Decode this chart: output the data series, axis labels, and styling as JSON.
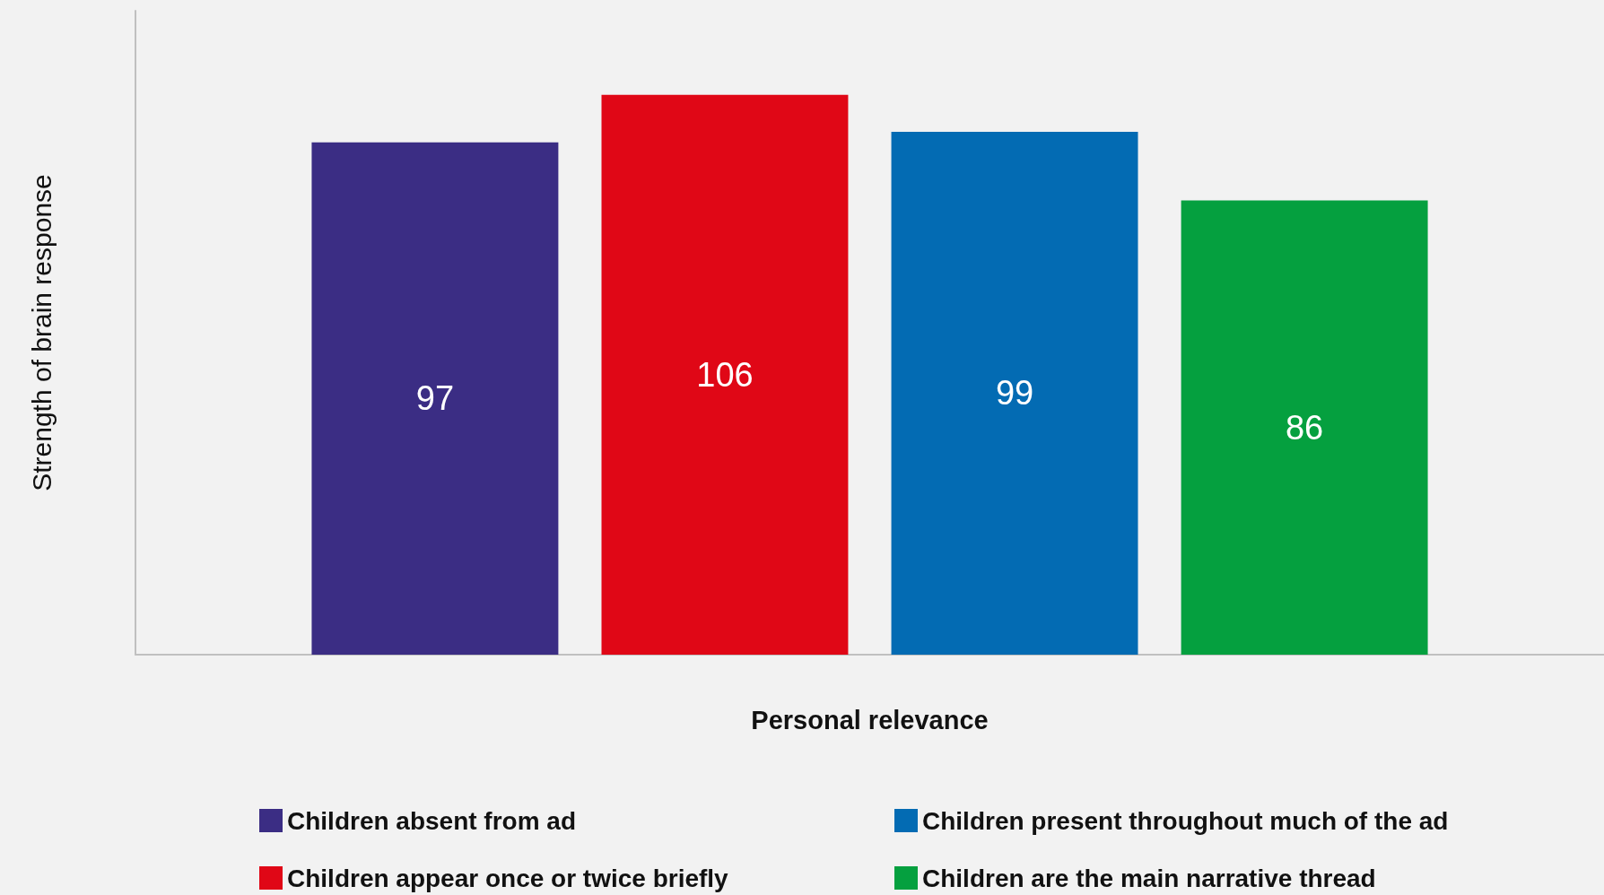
{
  "chart_data": {
    "type": "bar",
    "xlabel": "Personal relevance",
    "ylabel": "Strength of brain response",
    "categories": [
      null
    ],
    "series": [
      {
        "name": "Children absent from ad",
        "color": "#3b2d84",
        "values": [
          97
        ]
      },
      {
        "name": "Children appear once or twice briefly",
        "color": "#e00716",
        "values": [
          106
        ]
      },
      {
        "name": "Children present throughout much of the ad",
        "color": "#036bb3",
        "values": [
          99
        ]
      },
      {
        "name": "Children are the main narrative thread",
        "color": "#05a03f",
        "values": [
          86
        ]
      }
    ],
    "data_labels": true,
    "grid": false,
    "legend": "bottom"
  }
}
